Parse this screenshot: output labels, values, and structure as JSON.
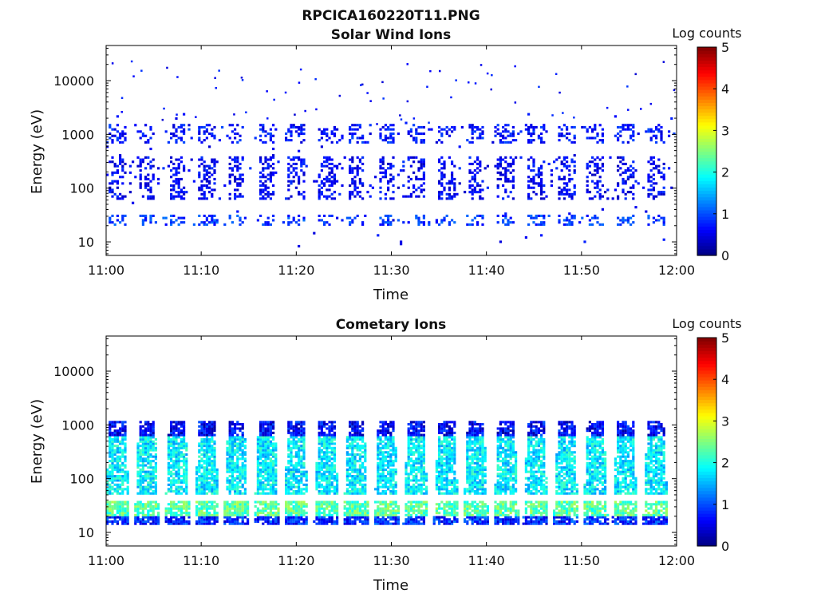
{
  "figure": {
    "title": "RPCICA160220T11.PNG"
  },
  "colors": {
    "colormap": [
      "#00007f",
      "#0000ff",
      "#007fff",
      "#00ffff",
      "#7fff7f",
      "#ffff00",
      "#ff7f00",
      "#ff0000",
      "#7f0000"
    ],
    "axes": "#000000",
    "background": "#ffffff"
  },
  "chart_data": [
    {
      "type": "heatmap",
      "title": "Solar Wind Ions",
      "xlabel": "Time",
      "ylabel": "Energy (eV)",
      "x_ticks": [
        "11:00",
        "11:10",
        "11:20",
        "11:30",
        "11:40",
        "11:50",
        "12:00"
      ],
      "x_range": [
        "11:00",
        "12:00"
      ],
      "y_scale": "log",
      "y_range": [
        5.6,
        45000
      ],
      "y_ticks": [
        "10",
        "100",
        "1000",
        "10000"
      ],
      "colorbar": {
        "label": "Log counts",
        "range": [
          0,
          5
        ],
        "ticks": [
          "0",
          "1",
          "2",
          "3",
          "4",
          "5"
        ]
      },
      "description": "sparse low-level counts (mostly 0.3-1.5 log counts) with periodic vertical bursts every ~3.2 min between 10 and 3000 eV",
      "bands": [
        {
          "energy_min": 20,
          "energy_max": 32,
          "mean_log_counts": 0.9
        },
        {
          "energy_min": 60,
          "energy_max": 400,
          "mean_log_counts": 0.6
        },
        {
          "energy_min": 700,
          "energy_max": 1600,
          "mean_log_counts": 0.7
        }
      ],
      "bursts_minutes": [
        1.2,
        4.3,
        7.5,
        10.6,
        13.7,
        16.9,
        20.0,
        23.2,
        26.3,
        29.5,
        32.6,
        35.8,
        38.9,
        42.1,
        45.2,
        48.4,
        51.5,
        54.6,
        57.8
      ]
    },
    {
      "type": "heatmap",
      "title": "Cometary Ions",
      "xlabel": "Time",
      "ylabel": "Energy (eV)",
      "x_ticks": [
        "11:00",
        "11:10",
        "11:20",
        "11:30",
        "11:40",
        "11:50",
        "12:00"
      ],
      "x_range": [
        "11:00",
        "12:00"
      ],
      "y_scale": "log",
      "y_range": [
        5.6,
        45000
      ],
      "y_ticks": [
        "10",
        "100",
        "1000",
        "10000"
      ],
      "colorbar": {
        "label": "Log counts",
        "range": [
          0,
          5
        ],
        "ticks": [
          "0",
          "1",
          "2",
          "3",
          "4",
          "5"
        ]
      },
      "description": "periodic plumes every ~3.2 min spanning ~15 to 1200 eV, peak ~2.5-3 log counts near 25-35 eV",
      "bands": [
        {
          "energy_min": 14,
          "energy_max": 20,
          "mean_log_counts": 0.8
        },
        {
          "energy_min": 20,
          "energy_max": 40,
          "mean_log_counts": 2.3
        },
        {
          "energy_min": 50,
          "energy_max": 600,
          "mean_log_counts": 1.8
        },
        {
          "energy_min": 600,
          "energy_max": 1200,
          "mean_log_counts": 0.6
        }
      ],
      "bursts_minutes": [
        1.2,
        4.3,
        7.5,
        10.6,
        13.7,
        16.9,
        20.0,
        23.2,
        26.3,
        29.5,
        32.6,
        35.8,
        38.9,
        42.1,
        45.2,
        48.4,
        51.5,
        54.6,
        57.8
      ]
    }
  ]
}
